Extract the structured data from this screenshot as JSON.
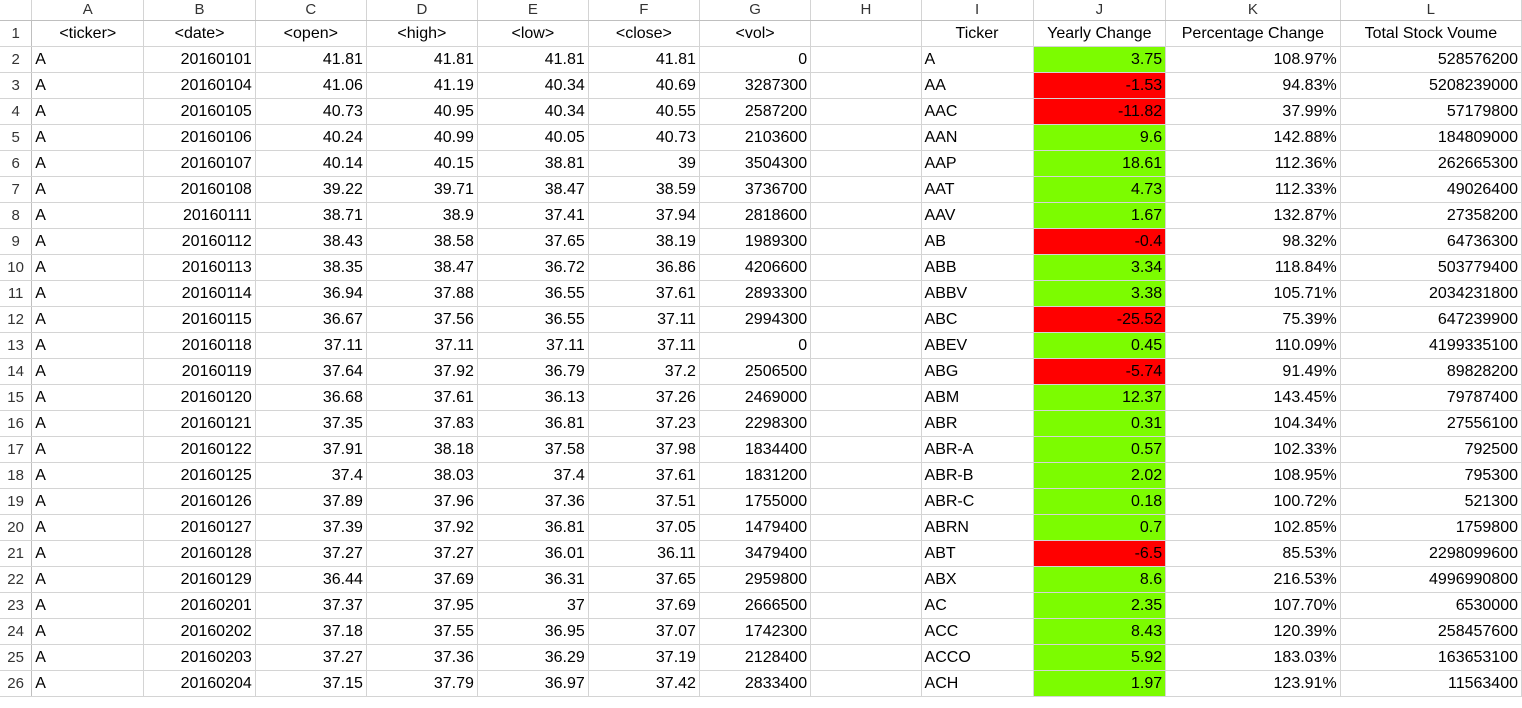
{
  "columns": [
    "A",
    "B",
    "C",
    "D",
    "E",
    "F",
    "G",
    "H",
    "I",
    "J",
    "K",
    "L"
  ],
  "header_row": {
    "row_number": "1",
    "left": [
      "<ticker>",
      "<date>",
      "<open>",
      "<high>",
      "<low>",
      "<close>",
      "<vol>"
    ],
    "right": [
      "Ticker",
      "Yearly Change",
      "Percentage Change",
      "Total Stock Voume"
    ]
  },
  "rows": [
    {
      "n": "2",
      "t": "A",
      "d": "20160101",
      "o": "41.81",
      "h": "41.81",
      "l": "41.81",
      "c": "41.81",
      "v": "0",
      "st": "A",
      "yc": "3.75",
      "ys": "pos",
      "pc": "108.97%",
      "tv": "528576200"
    },
    {
      "n": "3",
      "t": "A",
      "d": "20160104",
      "o": "41.06",
      "h": "41.19",
      "l": "40.34",
      "c": "40.69",
      "v": "3287300",
      "st": "AA",
      "yc": "-1.53",
      "ys": "neg",
      "pc": "94.83%",
      "tv": "5208239000"
    },
    {
      "n": "4",
      "t": "A",
      "d": "20160105",
      "o": "40.73",
      "h": "40.95",
      "l": "40.34",
      "c": "40.55",
      "v": "2587200",
      "st": "AAC",
      "yc": "-11.82",
      "ys": "neg",
      "pc": "37.99%",
      "tv": "57179800"
    },
    {
      "n": "5",
      "t": "A",
      "d": "20160106",
      "o": "40.24",
      "h": "40.99",
      "l": "40.05",
      "c": "40.73",
      "v": "2103600",
      "st": "AAN",
      "yc": "9.6",
      "ys": "pos",
      "pc": "142.88%",
      "tv": "184809000"
    },
    {
      "n": "6",
      "t": "A",
      "d": "20160107",
      "o": "40.14",
      "h": "40.15",
      "l": "38.81",
      "c": "39",
      "v": "3504300",
      "st": "AAP",
      "yc": "18.61",
      "ys": "pos",
      "pc": "112.36%",
      "tv": "262665300"
    },
    {
      "n": "7",
      "t": "A",
      "d": "20160108",
      "o": "39.22",
      "h": "39.71",
      "l": "38.47",
      "c": "38.59",
      "v": "3736700",
      "st": "AAT",
      "yc": "4.73",
      "ys": "pos",
      "pc": "112.33%",
      "tv": "49026400"
    },
    {
      "n": "8",
      "t": "A",
      "d": "20160111",
      "o": "38.71",
      "h": "38.9",
      "l": "37.41",
      "c": "37.94",
      "v": "2818600",
      "st": "AAV",
      "yc": "1.67",
      "ys": "pos",
      "pc": "132.87%",
      "tv": "27358200"
    },
    {
      "n": "9",
      "t": "A",
      "d": "20160112",
      "o": "38.43",
      "h": "38.58",
      "l": "37.65",
      "c": "38.19",
      "v": "1989300",
      "st": "AB",
      "yc": "-0.4",
      "ys": "neg",
      "pc": "98.32%",
      "tv": "64736300"
    },
    {
      "n": "10",
      "t": "A",
      "d": "20160113",
      "o": "38.35",
      "h": "38.47",
      "l": "36.72",
      "c": "36.86",
      "v": "4206600",
      "st": "ABB",
      "yc": "3.34",
      "ys": "pos",
      "pc": "118.84%",
      "tv": "503779400"
    },
    {
      "n": "11",
      "t": "A",
      "d": "20160114",
      "o": "36.94",
      "h": "37.88",
      "l": "36.55",
      "c": "37.61",
      "v": "2893300",
      "st": "ABBV",
      "yc": "3.38",
      "ys": "pos",
      "pc": "105.71%",
      "tv": "2034231800"
    },
    {
      "n": "12",
      "t": "A",
      "d": "20160115",
      "o": "36.67",
      "h": "37.56",
      "l": "36.55",
      "c": "37.11",
      "v": "2994300",
      "st": "ABC",
      "yc": "-25.52",
      "ys": "neg",
      "pc": "75.39%",
      "tv": "647239900"
    },
    {
      "n": "13",
      "t": "A",
      "d": "20160118",
      "o": "37.11",
      "h": "37.11",
      "l": "37.11",
      "c": "37.11",
      "v": "0",
      "st": "ABEV",
      "yc": "0.45",
      "ys": "pos",
      "pc": "110.09%",
      "tv": "4199335100"
    },
    {
      "n": "14",
      "t": "A",
      "d": "20160119",
      "o": "37.64",
      "h": "37.92",
      "l": "36.79",
      "c": "37.2",
      "v": "2506500",
      "st": "ABG",
      "yc": "-5.74",
      "ys": "neg",
      "pc": "91.49%",
      "tv": "89828200"
    },
    {
      "n": "15",
      "t": "A",
      "d": "20160120",
      "o": "36.68",
      "h": "37.61",
      "l": "36.13",
      "c": "37.26",
      "v": "2469000",
      "st": "ABM",
      "yc": "12.37",
      "ys": "pos",
      "pc": "143.45%",
      "tv": "79787400"
    },
    {
      "n": "16",
      "t": "A",
      "d": "20160121",
      "o": "37.35",
      "h": "37.83",
      "l": "36.81",
      "c": "37.23",
      "v": "2298300",
      "st": "ABR",
      "yc": "0.31",
      "ys": "pos",
      "pc": "104.34%",
      "tv": "27556100"
    },
    {
      "n": "17",
      "t": "A",
      "d": "20160122",
      "o": "37.91",
      "h": "38.18",
      "l": "37.58",
      "c": "37.98",
      "v": "1834400",
      "st": "ABR-A",
      "yc": "0.57",
      "ys": "pos",
      "pc": "102.33%",
      "tv": "792500"
    },
    {
      "n": "18",
      "t": "A",
      "d": "20160125",
      "o": "37.4",
      "h": "38.03",
      "l": "37.4",
      "c": "37.61",
      "v": "1831200",
      "st": "ABR-B",
      "yc": "2.02",
      "ys": "pos",
      "pc": "108.95%",
      "tv": "795300"
    },
    {
      "n": "19",
      "t": "A",
      "d": "20160126",
      "o": "37.89",
      "h": "37.96",
      "l": "37.36",
      "c": "37.51",
      "v": "1755000",
      "st": "ABR-C",
      "yc": "0.18",
      "ys": "pos",
      "pc": "100.72%",
      "tv": "521300"
    },
    {
      "n": "20",
      "t": "A",
      "d": "20160127",
      "o": "37.39",
      "h": "37.92",
      "l": "36.81",
      "c": "37.05",
      "v": "1479400",
      "st": "ABRN",
      "yc": "0.7",
      "ys": "pos",
      "pc": "102.85%",
      "tv": "1759800"
    },
    {
      "n": "21",
      "t": "A",
      "d": "20160128",
      "o": "37.27",
      "h": "37.27",
      "l": "36.01",
      "c": "36.11",
      "v": "3479400",
      "st": "ABT",
      "yc": "-6.5",
      "ys": "neg",
      "pc": "85.53%",
      "tv": "2298099600"
    },
    {
      "n": "22",
      "t": "A",
      "d": "20160129",
      "o": "36.44",
      "h": "37.69",
      "l": "36.31",
      "c": "37.65",
      "v": "2959800",
      "st": "ABX",
      "yc": "8.6",
      "ys": "pos",
      "pc": "216.53%",
      "tv": "4996990800"
    },
    {
      "n": "23",
      "t": "A",
      "d": "20160201",
      "o": "37.37",
      "h": "37.95",
      "l": "37",
      "c": "37.69",
      "v": "2666500",
      "st": "AC",
      "yc": "2.35",
      "ys": "pos",
      "pc": "107.70%",
      "tv": "6530000"
    },
    {
      "n": "24",
      "t": "A",
      "d": "20160202",
      "o": "37.18",
      "h": "37.55",
      "l": "36.95",
      "c": "37.07",
      "v": "1742300",
      "st": "ACC",
      "yc": "8.43",
      "ys": "pos",
      "pc": "120.39%",
      "tv": "258457600"
    },
    {
      "n": "25",
      "t": "A",
      "d": "20160203",
      "o": "37.27",
      "h": "37.36",
      "l": "36.29",
      "c": "37.19",
      "v": "2128400",
      "st": "ACCO",
      "yc": "5.92",
      "ys": "pos",
      "pc": "183.03%",
      "tv": "163653100"
    },
    {
      "n": "26",
      "t": "A",
      "d": "20160204",
      "o": "37.15",
      "h": "37.79",
      "l": "36.97",
      "c": "37.42",
      "v": "2833400",
      "st": "ACH",
      "yc": "1.97",
      "ys": "pos",
      "pc": "123.91%",
      "tv": "11563400"
    }
  ],
  "colors": {
    "positive": "#7cfc00",
    "negative": "#ff0000"
  }
}
